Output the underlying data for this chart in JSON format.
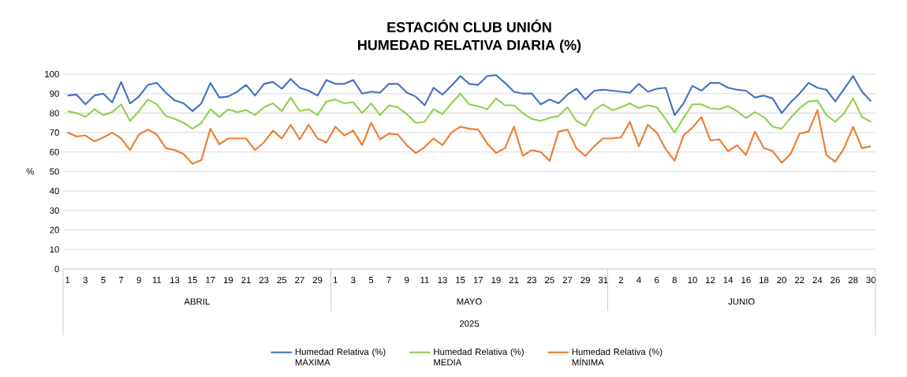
{
  "chart_data": {
    "type": "line",
    "title": "ESTACIÓN CLUB UNIÓN",
    "subtitle": "HUMEDAD RELATIVA DIARIA (%)",
    "ylabel": "%",
    "categories": [
      "1",
      null,
      "3",
      null,
      "5",
      null,
      "7",
      null,
      "9",
      null,
      "11",
      null,
      "13",
      null,
      "15",
      null,
      "17",
      null,
      "19",
      null,
      "21",
      null,
      "23",
      null,
      "25",
      null,
      "27",
      null,
      "29",
      null,
      "1",
      null,
      "3",
      null,
      "5",
      null,
      "7",
      null,
      "9",
      null,
      "11",
      null,
      "13",
      null,
      "15",
      null,
      "17",
      null,
      "19",
      null,
      "21",
      null,
      "23",
      null,
      "25",
      null,
      "27",
      null,
      "29",
      null,
      "31",
      null,
      "2",
      null,
      "4",
      null,
      "6",
      null,
      "8",
      null,
      "10",
      null,
      "12",
      null,
      "14",
      null,
      "16",
      null,
      "18",
      null,
      "20",
      null,
      "22",
      null,
      "24",
      null,
      "26",
      null,
      "28",
      null,
      "30"
    ],
    "series": [
      {
        "name": "Humedad Relativa (%) MÁXIMA",
        "color": "#4472c4",
        "values": [
          89,
          89.5,
          84.5,
          89,
          90,
          85.5,
          96,
          85,
          88.5,
          94.5,
          95.5,
          90.5,
          86.5,
          85,
          81,
          85,
          95.5,
          88,
          88.5,
          91,
          94.5,
          89,
          95,
          96,
          92.5,
          97.5,
          93,
          91.5,
          89,
          97,
          95,
          95,
          97,
          90,
          91,
          90.5,
          95,
          95,
          90.5,
          88.5,
          84,
          93,
          89.5,
          94,
          99,
          95,
          94.5,
          99,
          99.5,
          95.5,
          91,
          90,
          90,
          84.5,
          87,
          85,
          89.5,
          92.5,
          87,
          91.5,
          92,
          91.5,
          91,
          90.5,
          95,
          91,
          92.5,
          93,
          79,
          85,
          94,
          91.5,
          95.5,
          95.5,
          93,
          92,
          91.5,
          88,
          89,
          87.5,
          80,
          85.5,
          90,
          95.5,
          93,
          92,
          86,
          92.5,
          99,
          91,
          86
        ]
      },
      {
        "name": "Humedad Relativa (%) MEDIA",
        "color": "#92d050",
        "values": [
          81,
          80,
          78,
          82,
          79,
          80.5,
          84.5,
          76,
          81,
          87,
          84.5,
          78.5,
          77,
          75,
          72,
          75,
          82,
          78,
          82,
          80.5,
          81.5,
          79,
          83,
          85,
          81,
          88,
          81,
          82,
          79,
          86,
          87,
          85,
          85.5,
          80,
          85,
          79,
          84,
          83,
          79.5,
          75,
          75.5,
          82,
          79.5,
          85,
          90,
          84.5,
          83.5,
          82,
          87.5,
          84,
          84,
          80,
          77,
          76,
          77.5,
          78.5,
          83,
          76,
          73.5,
          81.5,
          84.5,
          81.5,
          83,
          85,
          82.5,
          84,
          83,
          77,
          70,
          77.5,
          84.5,
          84.5,
          82.5,
          82,
          83.5,
          81,
          77.5,
          80.5,
          78,
          73,
          72,
          77.5,
          82.5,
          86,
          86.5,
          79,
          75.5,
          80,
          87.5,
          78,
          75.5
        ]
      },
      {
        "name": "Humedad Relativa (%) MÍNIMA",
        "color": "#ed7d31",
        "values": [
          70,
          68,
          68.5,
          65.5,
          67.5,
          70,
          67,
          61,
          69,
          71.5,
          69,
          62,
          61,
          59,
          54,
          56,
          72,
          64,
          67,
          67,
          67,
          61,
          65,
          71,
          67,
          74,
          66.5,
          74,
          67,
          65,
          73,
          68.5,
          71,
          63.5,
          75,
          66.5,
          69.5,
          69,
          63.5,
          59.5,
          62.5,
          67,
          63.5,
          70,
          73,
          72,
          71.5,
          64.5,
          59.5,
          62,
          73,
          58,
          61,
          60,
          55.5,
          70.5,
          71.5,
          62,
          58,
          63,
          67,
          67,
          67.5,
          75.5,
          63,
          74,
          70,
          61.5,
          55.5,
          68.5,
          72.5,
          78,
          66,
          66.5,
          60.5,
          63.5,
          58.5,
          70.5,
          62,
          60.5,
          54.5,
          59,
          69.5,
          70.5,
          81.5,
          58.5,
          55,
          62,
          73,
          62,
          63
        ]
      }
    ],
    "ylim": [
      0,
      100
    ],
    "yticks": [
      0,
      10,
      20,
      30,
      40,
      50,
      60,
      70,
      80,
      90,
      100
    ],
    "grid": "y",
    "legend": "bottom",
    "annotations": [
      "ABRIL",
      "MAYO",
      "JUNIO",
      "2025"
    ]
  }
}
